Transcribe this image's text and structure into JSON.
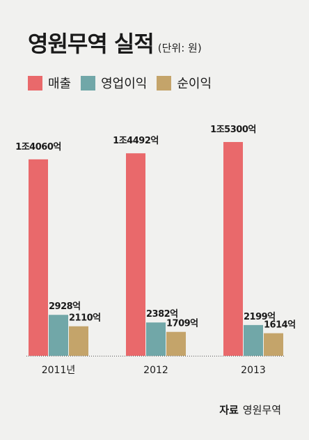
{
  "title": "영원무역 실적",
  "unit": "(단위: 원)",
  "source_label": "자료",
  "source_value": "영원무역",
  "colors": {
    "revenue": "#e9696b",
    "operating": "#71a7a8",
    "net": "#c4a46a"
  },
  "chart_data": {
    "type": "bar",
    "categories": [
      "2011년",
      "2012",
      "2013"
    ],
    "series": [
      {
        "name": "매출",
        "values": [
          14060,
          14492,
          15300
        ],
        "labels": [
          "1조4060억",
          "1조4492억",
          "1조5300억"
        ]
      },
      {
        "name": "영업이익",
        "values": [
          2928,
          2382,
          2199
        ],
        "labels": [
          "2928억",
          "2382억",
          "2199억"
        ]
      },
      {
        "name": "순이익",
        "values": [
          2110,
          1709,
          1614
        ],
        "labels": [
          "2110억",
          "1709억",
          "1614억"
        ]
      }
    ],
    "title": "영원무역 실적",
    "xlabel": "",
    "ylabel": "",
    "legend": "top-left",
    "grid": false
  }
}
